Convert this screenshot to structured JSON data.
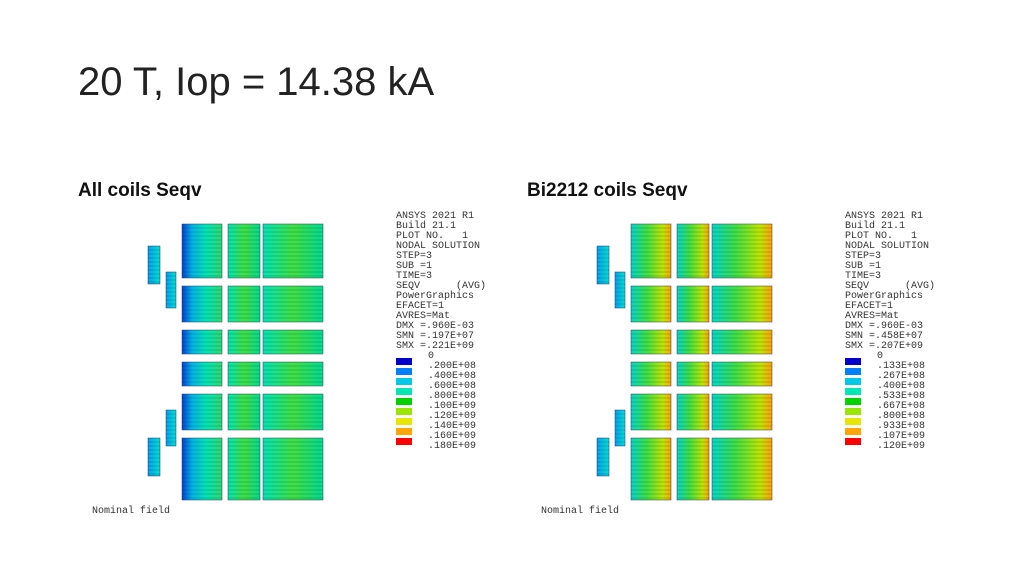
{
  "title": "20 T, Iop = 14.38 kA",
  "panels": [
    {
      "heading": "All coils Seqv",
      "info": [
        "ANSYS 2021 R1",
        "Build 21.1",
        "PLOT NO.   1",
        "NODAL SOLUTION",
        "STEP=3",
        "SUB =1",
        "TIME=3",
        "SEQV      (AVG)",
        "PowerGraphics",
        "EFACET=1",
        "AVRES=Mat",
        "DMX =.960E-03",
        "SMN =.197E+07",
        "SMX =.221E+09"
      ],
      "legend_labels": [
        "0",
        ".200E+08",
        ".400E+08",
        ".600E+08",
        ".800E+08",
        ".100E+09",
        ".120E+09",
        ".140E+09",
        ".160E+09",
        ".180E+09"
      ],
      "legend_colors": [
        "#0000c8",
        "#0080ff",
        "#00c8e6",
        "#00e6b4",
        "#00d200",
        "#9be600",
        "#e6e600",
        "#ffa500",
        "#ff0000"
      ],
      "footer": "Nominal field"
    },
    {
      "heading": "Bi2212 coils Seqv",
      "info": [
        "ANSYS 2021 R1",
        "Build 21.1",
        "PLOT NO.   1",
        "NODAL SOLUTION",
        "STEP=3",
        "SUB =1",
        "TIME=3",
        "SEQV      (AVG)",
        "PowerGraphics",
        "EFACET=1",
        "AVRES=Mat",
        "DMX =.960E-03",
        "SMN =.458E+07",
        "SMX =.207E+09"
      ],
      "legend_labels": [
        "0",
        ".133E+08",
        ".267E+08",
        ".400E+08",
        ".533E+08",
        ".667E+08",
        ".800E+08",
        ".933E+08",
        ".107E+09",
        ".120E+09"
      ],
      "legend_colors": [
        "#0000c8",
        "#0080ff",
        "#00c8e6",
        "#00e6b4",
        "#00d200",
        "#9be600",
        "#e6e600",
        "#ffa500",
        "#ff0000"
      ],
      "footer": "Nominal field"
    }
  ]
}
